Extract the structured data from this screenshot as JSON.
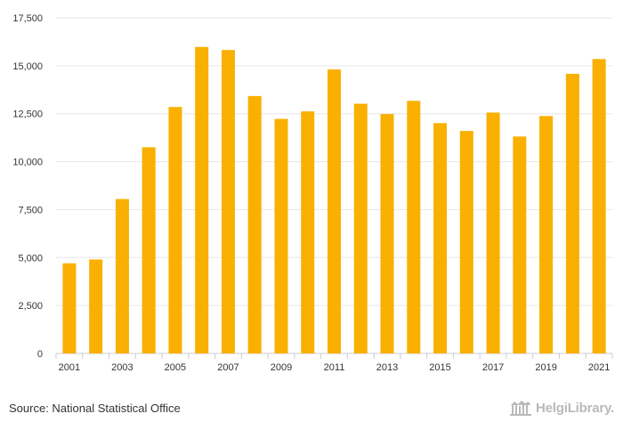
{
  "chart_data": {
    "type": "bar",
    "title": "",
    "xlabel": "",
    "ylabel": "",
    "categories": [
      "2001",
      "2002",
      "2003",
      "2004",
      "2005",
      "2006",
      "2007",
      "2008",
      "2009",
      "2010",
      "2011",
      "2012",
      "2013",
      "2014",
      "2015",
      "2016",
      "2017",
      "2018",
      "2019",
      "2020",
      "2021"
    ],
    "values": [
      4700,
      4900,
      8050,
      10750,
      12850,
      15980,
      15820,
      13420,
      12230,
      12620,
      14810,
      13020,
      12480,
      13170,
      12010,
      11600,
      12560,
      11310,
      12380,
      14580,
      15350
    ],
    "x_tick_labels": [
      "2001",
      "",
      "2003",
      "",
      "2005",
      "",
      "2007",
      "",
      "2009",
      "",
      "2011",
      "",
      "2013",
      "",
      "2015",
      "",
      "2017",
      "",
      "2019",
      "",
      "2021"
    ],
    "y_ticks": [
      0,
      2500,
      5000,
      7500,
      10000,
      12500,
      15000,
      17500
    ],
    "y_tick_labels": [
      "0",
      "2,500",
      "5,000",
      "7,500",
      "10,000",
      "12,500",
      "15,000",
      "17,500"
    ],
    "ylim": [
      0,
      17500
    ],
    "grid": true,
    "bar_color": "#f9b000"
  },
  "footer": {
    "source": "Source: National Statistical Office",
    "logo_text": "HelgiLibrary."
  },
  "colors": {
    "grid": "#e6e6e6",
    "axis": "#cccccc",
    "logo": "#b9b9b9"
  }
}
